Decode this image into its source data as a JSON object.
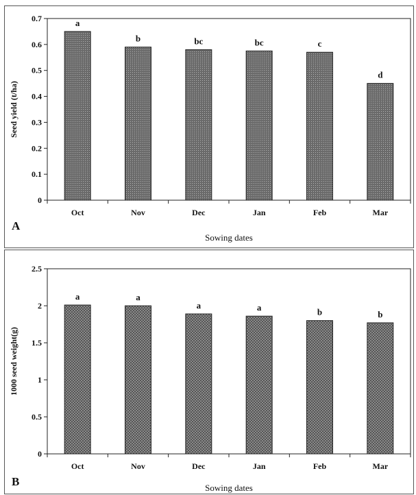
{
  "chart_data": [
    {
      "type": "bar",
      "panel_label": "A",
      "categories": [
        "Oct",
        "Nov",
        "Dec",
        "Jan",
        "Feb",
        "Mar"
      ],
      "values": [
        0.65,
        0.59,
        0.58,
        0.575,
        0.57,
        0.45
      ],
      "significance_letters": [
        "a",
        "b",
        "bc",
        "bc",
        "c",
        "d"
      ],
      "xlabel": "Sowing dates",
      "ylabel": "Seed yield (t/ha)",
      "ylim": [
        0,
        0.7
      ],
      "yticks": [
        "0",
        "0.1",
        "0.2",
        "0.3",
        "0.4",
        "0.5",
        "0.6",
        "0.7"
      ],
      "grid": false,
      "bar_color": "#7a7a7a"
    },
    {
      "type": "bar",
      "panel_label": "B",
      "categories": [
        "Oct",
        "Nov",
        "Dec",
        "Jan",
        "Feb",
        "Mar"
      ],
      "values": [
        2.01,
        2.0,
        1.89,
        1.86,
        1.8,
        1.77
      ],
      "significance_letters": [
        "a",
        "a",
        "a",
        "a",
        "b",
        "b"
      ],
      "xlabel": "Sowing dates",
      "ylabel": "1000 seed weight(g)",
      "ylim": [
        0,
        2.5
      ],
      "yticks": [
        "0",
        "0.5",
        "1",
        "1.5",
        "2",
        "2.5"
      ],
      "grid": false,
      "bar_color": "#8c8c8c"
    }
  ]
}
